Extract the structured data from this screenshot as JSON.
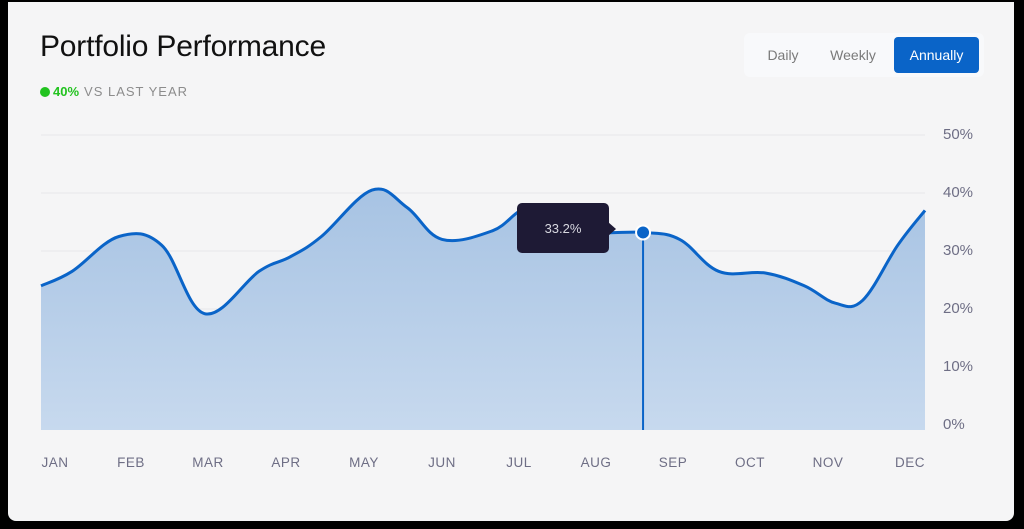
{
  "header": {
    "title": "Portfolio Performance",
    "delta_value": "40%",
    "delta_label": "VS LAST YEAR",
    "delta_color": "#22c31f"
  },
  "range_toggle": {
    "options": [
      {
        "label": "Daily",
        "active": false
      },
      {
        "label": "Weekly",
        "active": false
      },
      {
        "label": "Annually",
        "active": true
      }
    ],
    "active_color": "#0a64c8"
  },
  "tooltip": {
    "value": "33.2%",
    "month_index": 7.73
  },
  "colors": {
    "line": "#0a64c8",
    "area_top": "#a7c3e3",
    "area_bottom": "#c7d9ee",
    "grid": "#e6e6ea",
    "axis_text": "#6e6e85"
  },
  "chart_data": {
    "type": "area",
    "title": "Portfolio Performance",
    "subtitle": "40% VS LAST YEAR",
    "xlabel": "",
    "ylabel": "",
    "categories": [
      "JAN",
      "FEB",
      "MAR",
      "APR",
      "MAY",
      "JUN",
      "JUL",
      "AUG",
      "SEP",
      "OCT",
      "NOV",
      "DEC"
    ],
    "y_ticks": [
      "0%",
      "10%",
      "20%",
      "30%",
      "40%",
      "50%"
    ],
    "ylim": [
      0,
      50
    ],
    "grid": true,
    "y_axis_position": "right",
    "series": [
      {
        "name": "Portfolio",
        "x": [
          0,
          0.4,
          1.0,
          1.55,
          2.1,
          2.8,
          3.2,
          3.6,
          4.25,
          4.7,
          5.15,
          5.8,
          6.3,
          7.0,
          7.73,
          8.2,
          8.7,
          9.3,
          9.8,
          10.2,
          10.55,
          11.0,
          11.4
        ],
        "values": [
          24,
          26.5,
          32.5,
          31,
          19.2,
          26.5,
          29,
          32.5,
          40.5,
          37.5,
          32,
          33.5,
          37.5,
          33.5,
          33.2,
          32,
          26.5,
          26.2,
          24,
          21,
          21.5,
          31,
          37
        ]
      }
    ],
    "highlight": {
      "x": 7.73,
      "value": 33.2,
      "label": "33.2%"
    }
  }
}
